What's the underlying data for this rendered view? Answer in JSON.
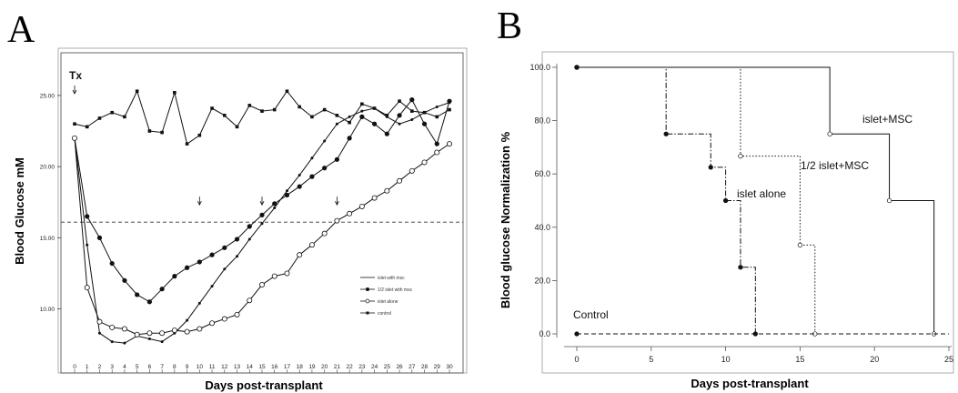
{
  "chart_data": [
    {
      "panel": "A",
      "type": "line",
      "ylabel": "Blood Glucose mM",
      "xlabel": "Days post-transplant",
      "tx_label": "Tx",
      "x": [
        0,
        1,
        2,
        3,
        4,
        5,
        6,
        7,
        8,
        9,
        10,
        11,
        12,
        13,
        14,
        15,
        16,
        17,
        18,
        19,
        20,
        21,
        22,
        23,
        24,
        25,
        26,
        27,
        28,
        29,
        30
      ],
      "ylim": [
        5.5,
        28
      ],
      "ytick_labels": [
        "10.00",
        "15.00",
        "20.00",
        "25.00"
      ],
      "yticks": [
        10,
        15,
        20,
        25
      ],
      "threshold": 16.1,
      "arrows": [
        0,
        10,
        15,
        21
      ],
      "series": [
        {
          "name": "islet  with  msc",
          "marker": "dot",
          "values": [
            22.0,
            14.5,
            8.3,
            7.7,
            7.6,
            8.1,
            7.9,
            7.7,
            8.3,
            9.2,
            10.4,
            11.6,
            12.8,
            13.7,
            14.9,
            16.0,
            17.1,
            18.3,
            19.4,
            20.6,
            21.8,
            23.0,
            23.5,
            23.9,
            24.1,
            23.5,
            23.0,
            23.3,
            23.8,
            24.2,
            24.5
          ]
        },
        {
          "name": "1/2 islet  with  msc",
          "marker": "filled",
          "values": [
            22.0,
            16.5,
            15.0,
            13.2,
            12.0,
            11.0,
            10.5,
            11.4,
            12.3,
            12.9,
            13.3,
            13.8,
            14.3,
            14.9,
            15.8,
            16.6,
            17.4,
            18.0,
            18.6,
            19.3,
            19.9,
            20.5,
            22.0,
            23.5,
            23.0,
            22.3,
            23.6,
            24.7,
            23.0,
            21.6,
            24.6
          ]
        },
        {
          "name": "islet  alone",
          "marker": "open",
          "values": [
            22.0,
            11.5,
            9.1,
            8.7,
            8.6,
            8.2,
            8.3,
            8.3,
            8.5,
            8.4,
            8.6,
            9.0,
            9.3,
            9.6,
            10.6,
            11.7,
            12.3,
            12.5,
            13.8,
            14.5,
            15.3,
            16.2,
            16.7,
            17.2,
            17.8,
            18.3,
            19.0,
            19.7,
            20.3,
            21.0,
            21.6
          ]
        },
        {
          "name": "control",
          "marker": "square",
          "values": [
            23.0,
            22.8,
            23.4,
            23.8,
            23.5,
            25.3,
            22.5,
            22.4,
            25.2,
            21.6,
            22.2,
            24.1,
            23.6,
            22.8,
            24.3,
            23.9,
            24.0,
            25.3,
            24.2,
            23.5,
            24.0,
            23.6,
            23.1,
            24.4,
            24.1,
            23.6,
            24.6,
            23.9,
            23.8,
            23.5,
            24.0
          ]
        }
      ]
    },
    {
      "panel": "B",
      "type": "line",
      "ylabel": "Blood glucose Normalization %",
      "xlabel": "Days post-transplant",
      "xlim": [
        0,
        25
      ],
      "ylim": [
        0,
        100
      ],
      "xticks": [
        0,
        5,
        10,
        15,
        20,
        25
      ],
      "xtick_labels": [
        "0",
        "5",
        "10",
        "15",
        "20",
        "25"
      ],
      "yticks": [
        0,
        20,
        40,
        60,
        80,
        100
      ],
      "ytick_labels": [
        "0.0",
        "20.0",
        "40.0",
        "60.0",
        "80.0",
        "100.0"
      ],
      "series": [
        {
          "name": "islet+MSC",
          "style": "solid",
          "steps": [
            [
              0,
              100
            ],
            [
              17,
              75
            ],
            [
              21,
              50
            ],
            [
              24,
              0
            ]
          ]
        },
        {
          "name": "1/2 islet+MSC",
          "style": "dotted",
          "steps": [
            [
              0,
              100
            ],
            [
              11,
              66.7
            ],
            [
              15,
              33.3
            ],
            [
              16,
              0
            ]
          ]
        },
        {
          "name": "islet alone",
          "style": "dashdot",
          "steps": [
            [
              0,
              100
            ],
            [
              6,
              75
            ],
            [
              9,
              62.5
            ],
            [
              10,
              50
            ],
            [
              11,
              25
            ],
            [
              12,
              0
            ]
          ]
        },
        {
          "name": "Control",
          "style": "dashed",
          "steps": [
            [
              0,
              0
            ]
          ]
        }
      ]
    }
  ],
  "colors": {
    "ink": "#111111",
    "axis": "#555555",
    "frame": "#999999"
  }
}
